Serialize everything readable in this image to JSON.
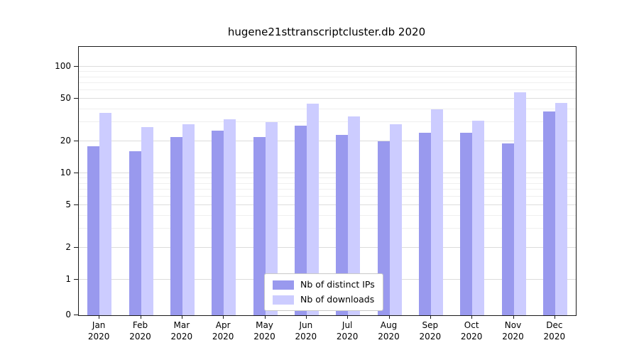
{
  "chart_data": {
    "type": "bar",
    "title": "hugene21sttranscriptcluster.db 2020",
    "x_categories_line1": [
      "Jan",
      "Feb",
      "Mar",
      "Apr",
      "May",
      "Jun",
      "Jul",
      "Aug",
      "Sep",
      "Oct",
      "Nov",
      "Dec"
    ],
    "x_categories_line2": "2020",
    "series": [
      {
        "name": "Nb of distinct IPs",
        "color": "#9999ee",
        "values": [
          18,
          16,
          22,
          25,
          22,
          28,
          23,
          20,
          24,
          24,
          19,
          38
        ]
      },
      {
        "name": "Nb of downloads",
        "color": "#ccccff",
        "values": [
          37,
          27,
          29,
          32,
          30,
          45,
          34,
          29,
          40,
          31,
          58,
          46
        ]
      }
    ],
    "y_scale": "symlog",
    "y_ticks": [
      0,
      1,
      2,
      5,
      10,
      20,
      50,
      100
    ],
    "y_minor_ticks": [
      3,
      4,
      6,
      7,
      8,
      9,
      30,
      40,
      60,
      70,
      80,
      90
    ],
    "ylim": [
      0,
      150
    ],
    "grid": true,
    "legend_position": "lower center"
  }
}
